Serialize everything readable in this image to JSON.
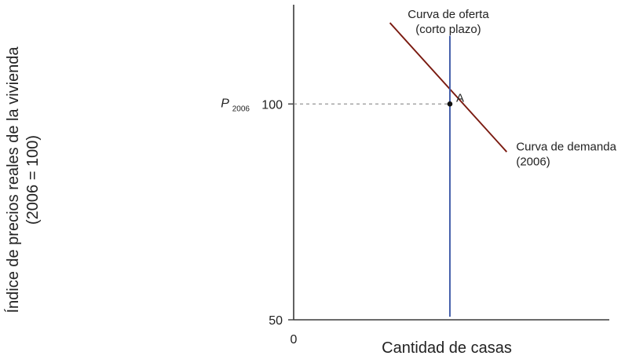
{
  "chart_data": {
    "type": "line",
    "title": "",
    "xlabel": "Cantidad de casas",
    "ylabel_line1": "Índice de precios reales de la vivienda",
    "ylabel_line2": "(2006 = 100)",
    "x_origin_label": "0",
    "yticks": [
      {
        "value": 100,
        "label": "100"
      },
      {
        "value": 50,
        "label": "50"
      }
    ],
    "ylim": [
      50,
      123
    ],
    "xlim": [
      0,
      100
    ],
    "price_label_main": "P",
    "price_label_sub": "2006",
    "price_value": 100,
    "series": [
      {
        "name": "Curva de demanda (2006)",
        "label_line1": "Curva de demanda",
        "label_line2": "(2006)",
        "color": "#7a1a10",
        "points": [
          [
            30.5,
            118.8
          ],
          [
            67.5,
            88.9
          ]
        ]
      },
      {
        "name": "Curva de oferta (corto plazo)",
        "label_line1": "Curva de oferta",
        "label_line2": "(corto plazo)",
        "color": "#3f5aa8",
        "points": [
          [
            49.5,
            115.8
          ],
          [
            49.5,
            50.7
          ]
        ]
      }
    ],
    "points": [
      {
        "label": "A",
        "x": 49.5,
        "y": 100
      }
    ],
    "grid": false,
    "legend": "none"
  }
}
